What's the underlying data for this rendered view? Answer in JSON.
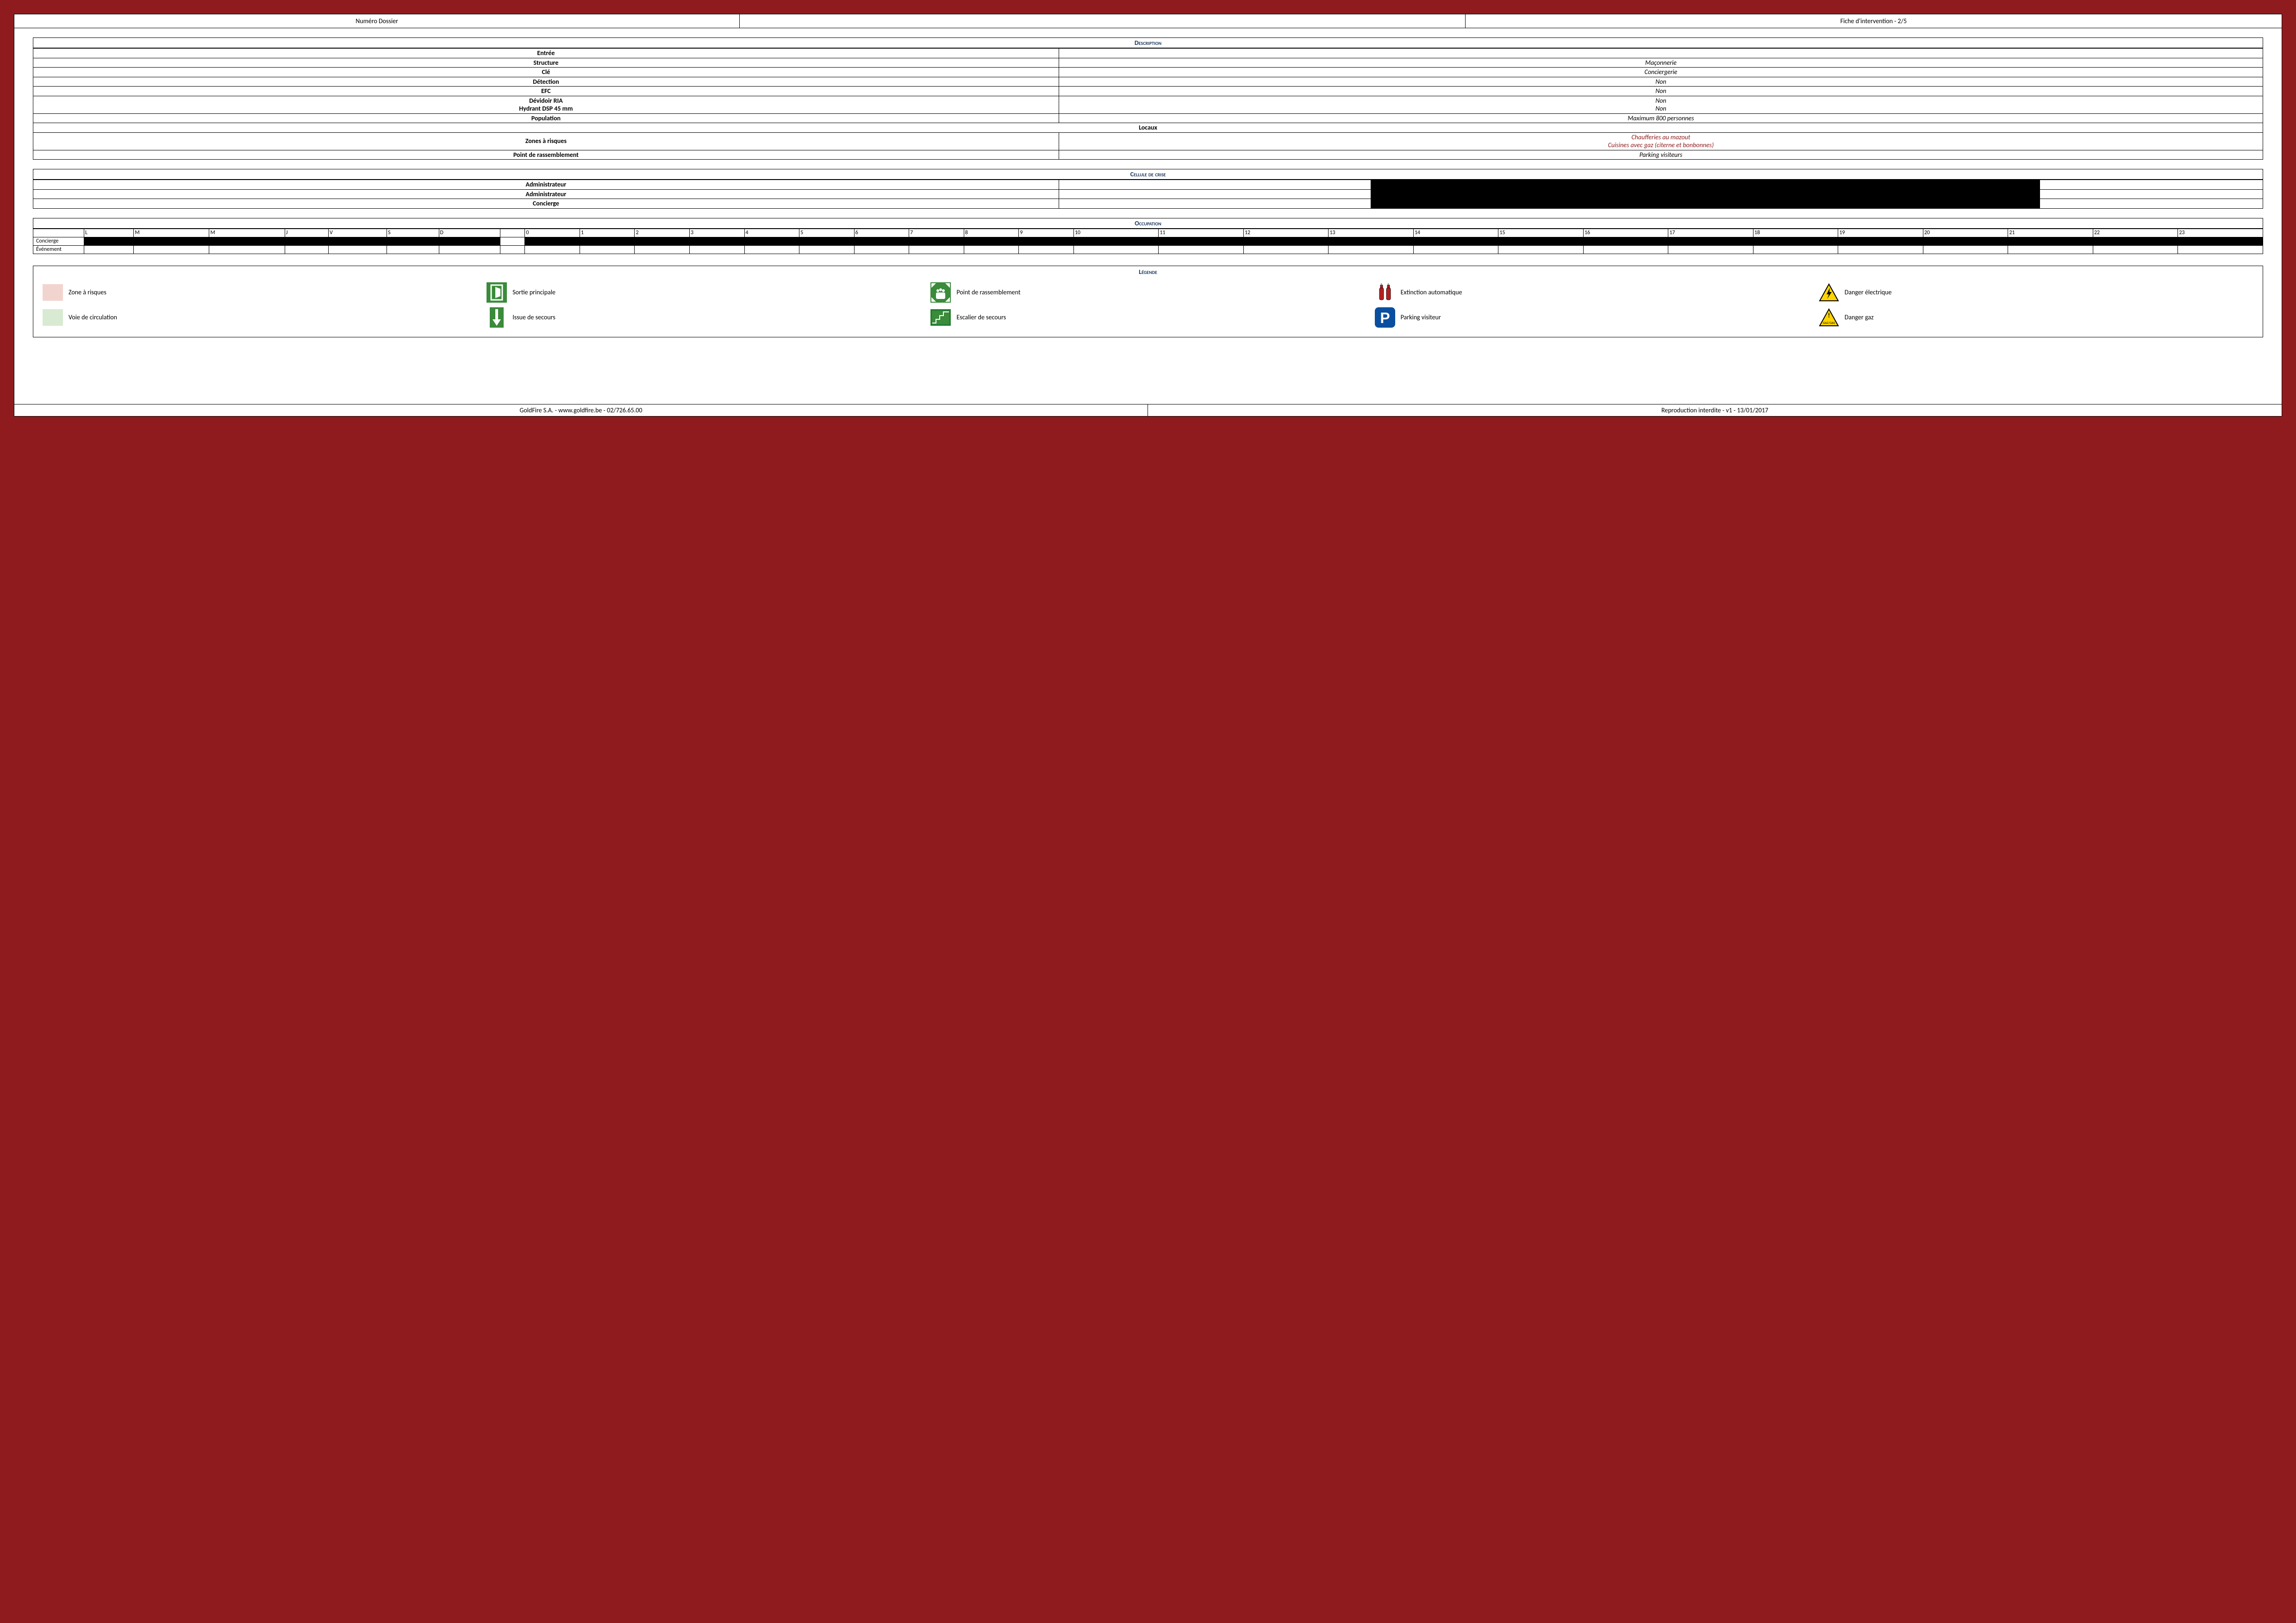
{
  "header": {
    "left": "Numéro Dossier",
    "mid": "",
    "right": "Fiche d'intervention - 2/5"
  },
  "description": {
    "title": "Description",
    "rows": [
      {
        "label": "Entrée",
        "value": ""
      },
      {
        "label": "Structure",
        "value": "Maçonnerie"
      },
      {
        "label": "Clé",
        "value": "Conciergerie"
      },
      {
        "label": "Détection",
        "value": "Non"
      },
      {
        "label": "EFC",
        "value": "Non"
      }
    ],
    "ria_label1": "Dévidoir RIA",
    "ria_val1": "Non",
    "ria_label2": "Hydrant DSP 45 mm",
    "ria_val2": "Non",
    "population_label": "Population",
    "population_value": "Maximum 800 personnes",
    "locaux_label": "Locaux",
    "zones_label": "Zones à risques",
    "zones_line1": "Chaufferies au mazout",
    "zones_line2": "Cuisines avec gaz (citerne et bonbonnes)",
    "rassemblement_label": "Point de rassemblement",
    "rassemblement_value": "Parking visiteurs"
  },
  "crise": {
    "title": "Cellule de crise",
    "rows": [
      "Administrateur",
      "Administrateur",
      "Concierge"
    ]
  },
  "occupation": {
    "title": "Occupation",
    "days": [
      "L",
      "M",
      "M",
      "J",
      "V",
      "S",
      "D"
    ],
    "hours": [
      "0",
      "1",
      "2",
      "3",
      "4",
      "5",
      "6",
      "7",
      "8",
      "9",
      "10",
      "11",
      "12",
      "13",
      "14",
      "15",
      "16",
      "17",
      "18",
      "19",
      "20",
      "21",
      "22",
      "23"
    ],
    "rows": [
      {
        "label": "Concierge",
        "days_black": true,
        "gap_black": false,
        "hours_black": true
      },
      {
        "label": "Événement",
        "days_black": false,
        "gap_black": false,
        "hours_black": false
      }
    ]
  },
  "legend": {
    "title": "Légende",
    "items": [
      {
        "key": "risk",
        "label": "Zone à risques"
      },
      {
        "key": "exit-main",
        "label": "Sortie principale"
      },
      {
        "key": "assembly",
        "label": "Point de rassemblement"
      },
      {
        "key": "extinction",
        "label": "Extinction automatique"
      },
      {
        "key": "danger-elec",
        "label": "Danger électrique"
      },
      {
        "key": "circulation",
        "label": "Voie de circulation"
      },
      {
        "key": "exit-emergency",
        "label": "Issue de secours"
      },
      {
        "key": "stairs",
        "label": "Escalier de secours"
      },
      {
        "key": "parking",
        "label": "Parking visiteur"
      },
      {
        "key": "danger-gas",
        "label": "Danger gaz"
      }
    ]
  },
  "footer": {
    "left": "GoldFire S.A. - www.goldfire.be - 02/726.65.00",
    "right": "Reproduction interdite - v1 - 13/01/2017"
  },
  "colors": {
    "page_bg": "#8f1b1f",
    "title": "#1b365d",
    "risk_swatch": "#f2d4cf",
    "circ_swatch": "#d9ead3",
    "green": "#3a8b3a",
    "parking_blue": "#0a4ea0",
    "warn_yellow": "#ffd400",
    "ext_red": "#b4201f"
  }
}
